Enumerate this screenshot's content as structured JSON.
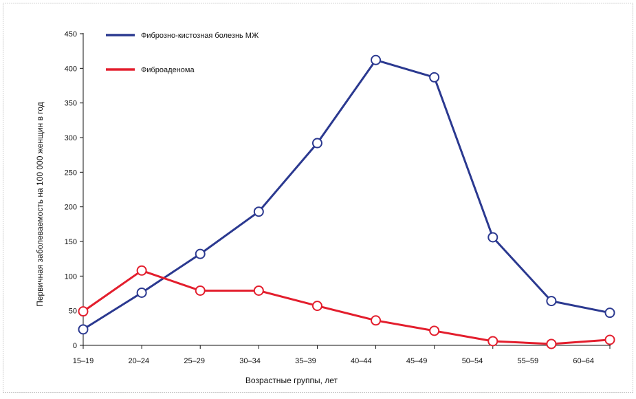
{
  "chart_data": {
    "type": "line",
    "ylabel": "Первичная заболеваемость на 100 000 женщин в год",
    "xlabel": "Возрастные группы, лет",
    "x_tick_labels": [
      "15–19",
      "20–24",
      "25–29",
      "30–34",
      "35–39",
      "40–44",
      "45–49",
      "50–54",
      "55–59",
      "60–64"
    ],
    "y_ticks": [
      0,
      50,
      100,
      150,
      200,
      250,
      300,
      350,
      400,
      450
    ],
    "ylim": [
      0,
      450
    ],
    "grid": false,
    "legend_position": "top-left",
    "series": [
      {
        "name": "Фиброзно-кистозная болезнь МЖ",
        "color": "#2b3990",
        "values": [
          23,
          76,
          132,
          193,
          292,
          412,
          387,
          156,
          64,
          47
        ]
      },
      {
        "name": "Фиброаденома",
        "color": "#e31e2d",
        "values": [
          49,
          108,
          79,
          79,
          57,
          36,
          21,
          6,
          2,
          8
        ]
      }
    ]
  }
}
